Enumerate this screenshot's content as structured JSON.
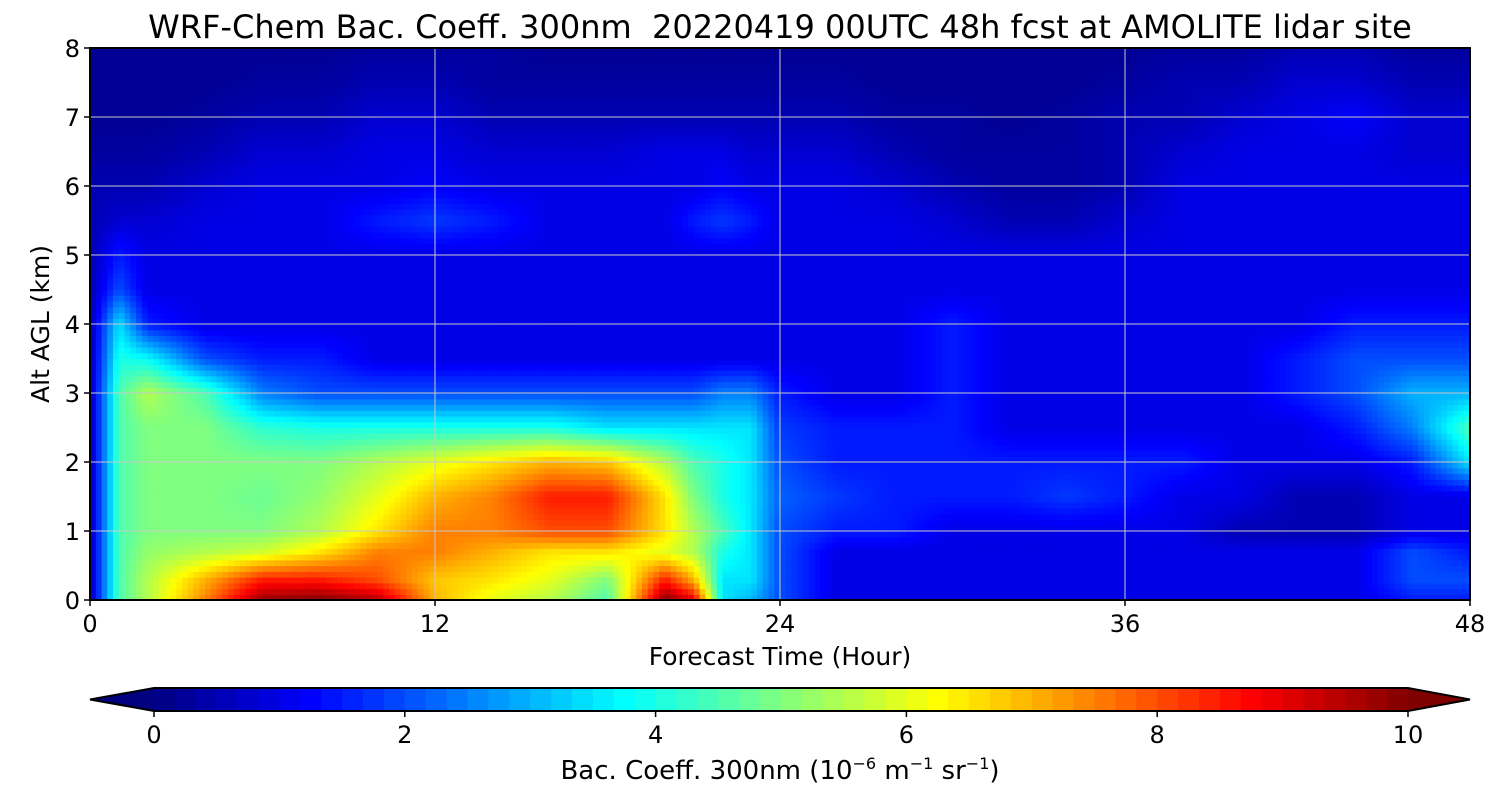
{
  "chart_data": {
    "type": "heatmap",
    "title": "WRF-Chem Bac. Coeff. 300nm  20220419 00UTC 48h fcst at AMOLITE lidar site",
    "xlabel": "Forecast Time (Hour)",
    "ylabel": "Alt AGL (km)",
    "xlim": [
      0,
      48
    ],
    "ylim": [
      0,
      8
    ],
    "xticks": [
      "0",
      "12",
      "24",
      "36",
      "48"
    ],
    "yticks": [
      "0",
      "1",
      "2",
      "3",
      "4",
      "5",
      "6",
      "7",
      "8"
    ],
    "grid": true,
    "colormap": "jet",
    "colorbar": {
      "orientation": "horizontal",
      "range": [
        0,
        10
      ],
      "ticks": [
        "0",
        "2",
        "4",
        "6",
        "8",
        "10"
      ],
      "extend": "both",
      "label_main": "Bac. Coeff. 300nm  (10",
      "label_exp1": "−6",
      "label_mid": " m",
      "label_exp2": "−1",
      "label_mid2": " sr",
      "label_exp3": "−1",
      "label_end": ")"
    },
    "x": [
      0,
      1,
      2,
      4,
      6,
      8,
      10,
      12,
      14,
      16,
      18,
      20,
      21,
      22,
      23,
      24,
      26,
      28,
      30,
      32,
      34,
      36,
      38,
      40,
      42,
      44,
      46,
      48
    ],
    "y": [
      0,
      0.3,
      0.7,
      1.0,
      1.5,
      2.0,
      2.5,
      3.0,
      3.5,
      4.0,
      4.5,
      5.0,
      5.5,
      6.0,
      6.5,
      7.0,
      7.5,
      8.0
    ],
    "values": [
      [
        0.5,
        4.5,
        5.5,
        7.5,
        9.8,
        10.0,
        9.5,
        7.0,
        6.0,
        5.5,
        4.5,
        10.0,
        9.0,
        3.5,
        3.0,
        2.0,
        1.0,
        1.0,
        1.0,
        1.0,
        1.0,
        1.0,
        1.0,
        1.0,
        1.0,
        1.0,
        1.5,
        1.5
      ],
      [
        0.5,
        4.5,
        5.5,
        7.0,
        8.5,
        8.5,
        8.0,
        6.8,
        6.5,
        6.0,
        5.0,
        8.5,
        7.0,
        3.5,
        3.5,
        2.0,
        1.0,
        1.0,
        1.0,
        1.0,
        1.0,
        1.0,
        1.0,
        1.0,
        1.0,
        1.0,
        2.0,
        2.0
      ],
      [
        0.5,
        4.5,
        5.2,
        5.5,
        5.8,
        6.5,
        7.5,
        7.5,
        7.0,
        6.5,
        6.5,
        6.0,
        5.5,
        4.0,
        3.5,
        2.0,
        1.0,
        1.0,
        1.0,
        1.0,
        1.0,
        1.0,
        1.0,
        1.0,
        1.0,
        1.0,
        2.0,
        1.5
      ],
      [
        0.5,
        4.5,
        5.0,
        5.0,
        5.0,
        5.5,
        6.5,
        7.5,
        7.5,
        8.0,
        8.0,
        6.5,
        5.5,
        4.5,
        3.5,
        2.0,
        1.5,
        1.5,
        1.0,
        1.0,
        1.0,
        1.0,
        1.0,
        0.5,
        0.5,
        0.5,
        1.0,
        1.0
      ],
      [
        0.5,
        4.5,
        5.0,
        5.0,
        4.8,
        5.2,
        6.0,
        7.0,
        7.5,
        8.5,
        8.5,
        6.5,
        5.0,
        4.0,
        3.5,
        2.2,
        1.8,
        1.5,
        1.5,
        1.5,
        1.8,
        1.5,
        1.0,
        1.0,
        0.5,
        0.5,
        1.0,
        1.0
      ],
      [
        0.5,
        4.5,
        5.0,
        5.0,
        5.0,
        5.0,
        5.5,
        6.0,
        6.5,
        7.0,
        6.8,
        5.5,
        4.5,
        4.0,
        3.5,
        2.0,
        1.5,
        1.5,
        1.5,
        1.5,
        1.5,
        1.5,
        1.5,
        1.0,
        1.0,
        1.0,
        1.5,
        3.5
      ],
      [
        0.5,
        4.5,
        5.0,
        5.0,
        4.2,
        4.0,
        4.0,
        4.0,
        4.0,
        4.0,
        3.5,
        3.5,
        3.5,
        3.5,
        3.5,
        1.8,
        1.5,
        1.5,
        1.5,
        1.0,
        1.0,
        1.0,
        1.0,
        1.0,
        1.0,
        1.5,
        2.5,
        4.5
      ],
      [
        0.5,
        4.5,
        5.5,
        4.5,
        2.5,
        2.0,
        2.0,
        2.0,
        2.0,
        2.0,
        2.0,
        2.0,
        2.0,
        2.5,
        2.5,
        1.5,
        1.0,
        1.0,
        1.5,
        1.0,
        1.0,
        1.0,
        1.0,
        1.0,
        1.5,
        2.0,
        3.0,
        3.0
      ],
      [
        0.5,
        4.0,
        3.8,
        2.0,
        1.5,
        1.5,
        1.0,
        1.0,
        1.0,
        1.0,
        1.0,
        1.0,
        1.0,
        1.0,
        1.0,
        1.0,
        1.0,
        1.0,
        1.5,
        1.0,
        1.0,
        1.0,
        1.0,
        1.0,
        1.5,
        2.0,
        2.0,
        2.0
      ],
      [
        0.5,
        3.5,
        1.5,
        1.0,
        1.0,
        1.0,
        1.0,
        1.0,
        1.0,
        1.0,
        1.0,
        1.0,
        1.0,
        1.0,
        1.0,
        1.0,
        1.0,
        1.0,
        1.5,
        1.0,
        1.0,
        1.0,
        1.0,
        1.0,
        1.0,
        1.5,
        1.5,
        1.5
      ],
      [
        0.5,
        2.0,
        1.0,
        1.0,
        1.0,
        1.0,
        1.0,
        1.0,
        1.0,
        1.0,
        1.0,
        1.0,
        1.0,
        1.0,
        1.0,
        1.0,
        1.0,
        1.0,
        1.0,
        1.0,
        1.0,
        1.0,
        1.0,
        1.0,
        1.0,
        1.0,
        1.0,
        1.0
      ],
      [
        0.5,
        1.5,
        1.0,
        1.0,
        1.0,
        1.0,
        1.0,
        1.0,
        1.0,
        1.0,
        1.0,
        1.0,
        1.0,
        1.0,
        1.0,
        1.0,
        1.0,
        1.0,
        1.0,
        1.0,
        1.0,
        1.0,
        1.0,
        1.0,
        1.0,
        1.0,
        1.0,
        1.0
      ],
      [
        0.5,
        0.8,
        0.8,
        1.0,
        1.0,
        1.0,
        1.5,
        1.8,
        1.5,
        1.0,
        1.0,
        1.0,
        1.5,
        1.8,
        1.5,
        1.0,
        1.0,
        1.0,
        0.8,
        0.5,
        0.5,
        0.8,
        1.0,
        1.0,
        1.0,
        1.0,
        1.0,
        1.0
      ],
      [
        0.5,
        0.5,
        0.5,
        0.8,
        1.0,
        1.0,
        1.0,
        1.2,
        1.0,
        1.0,
        1.0,
        1.0,
        1.0,
        1.2,
        1.0,
        1.0,
        1.0,
        0.8,
        0.5,
        0.3,
        0.3,
        0.5,
        1.0,
        1.0,
        1.0,
        1.0,
        1.0,
        1.0
      ],
      [
        0.3,
        0.3,
        0.3,
        0.5,
        0.8,
        0.8,
        1.0,
        1.0,
        0.8,
        0.8,
        0.8,
        1.0,
        1.0,
        1.0,
        0.8,
        0.8,
        0.8,
        0.5,
        0.3,
        0.3,
        0.3,
        0.5,
        0.8,
        1.0,
        1.0,
        1.0,
        0.8,
        0.8
      ],
      [
        0.2,
        0.2,
        0.2,
        0.3,
        0.5,
        0.5,
        0.8,
        0.8,
        0.5,
        0.5,
        0.5,
        0.5,
        0.5,
        0.5,
        0.5,
        0.5,
        0.5,
        0.3,
        0.3,
        0.2,
        0.3,
        0.5,
        0.5,
        0.8,
        1.0,
        1.2,
        0.8,
        0.8
      ],
      [
        0.2,
        0.2,
        0.2,
        0.2,
        0.3,
        0.3,
        0.5,
        0.5,
        0.3,
        0.3,
        0.3,
        0.3,
        0.3,
        0.3,
        0.3,
        0.3,
        0.3,
        0.2,
        0.2,
        0.2,
        0.2,
        0.3,
        0.5,
        0.5,
        0.8,
        0.8,
        0.5,
        0.5
      ],
      [
        0.2,
        0.2,
        0.2,
        0.2,
        0.2,
        0.2,
        0.3,
        0.3,
        0.3,
        0.2,
        0.2,
        0.2,
        0.2,
        0.2,
        0.2,
        0.2,
        0.2,
        0.2,
        0.2,
        0.2,
        0.2,
        0.2,
        0.3,
        0.3,
        0.5,
        0.5,
        0.3,
        0.3
      ]
    ]
  }
}
